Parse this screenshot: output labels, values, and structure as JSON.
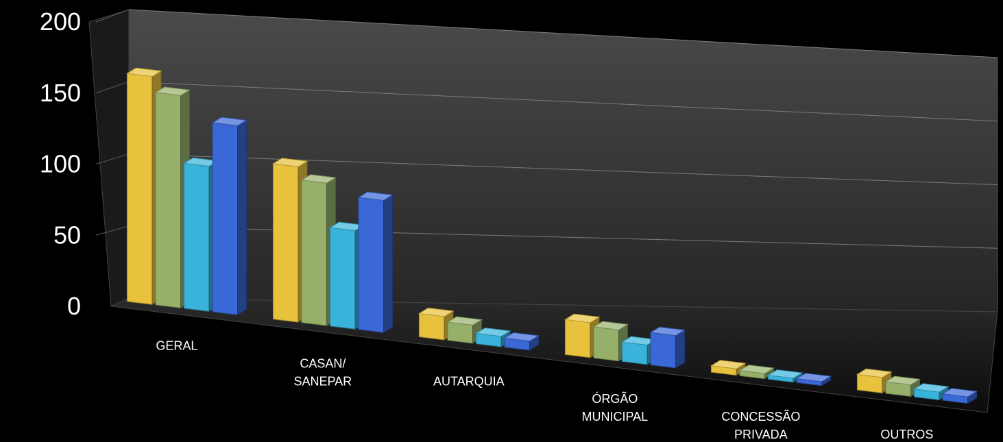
{
  "chart_data": {
    "type": "bar",
    "title": "",
    "xlabel": "",
    "ylabel": "",
    "ylim": [
      0,
      200
    ],
    "y_ticks": [
      "0",
      "50",
      "100",
      "150",
      "200"
    ],
    "gridlines": true,
    "legend": "none",
    "categories": [
      [
        "GERAL"
      ],
      [
        "CASAN/",
        "SANEPAR"
      ],
      [
        "AUTARQUIA"
      ],
      [
        "ÓRGÃO",
        "MUNICIPAL"
      ],
      [
        "CONCESSÃO",
        "PRIVADA"
      ],
      [
        "OUTROS"
      ]
    ],
    "series": [
      {
        "values": [
          176,
          120,
          18,
          27,
          5,
          12
        ],
        "color": "#e8c23d"
      },
      {
        "values": [
          164,
          110,
          14,
          24,
          4,
          9
        ],
        "color": "#96b06a"
      },
      {
        "values": [
          112,
          76,
          8,
          15,
          3,
          6
        ],
        "color": "#3ab3db"
      },
      {
        "values": [
          146,
          102,
          7,
          25,
          3,
          5
        ],
        "color": "#3a68d6"
      }
    ]
  }
}
